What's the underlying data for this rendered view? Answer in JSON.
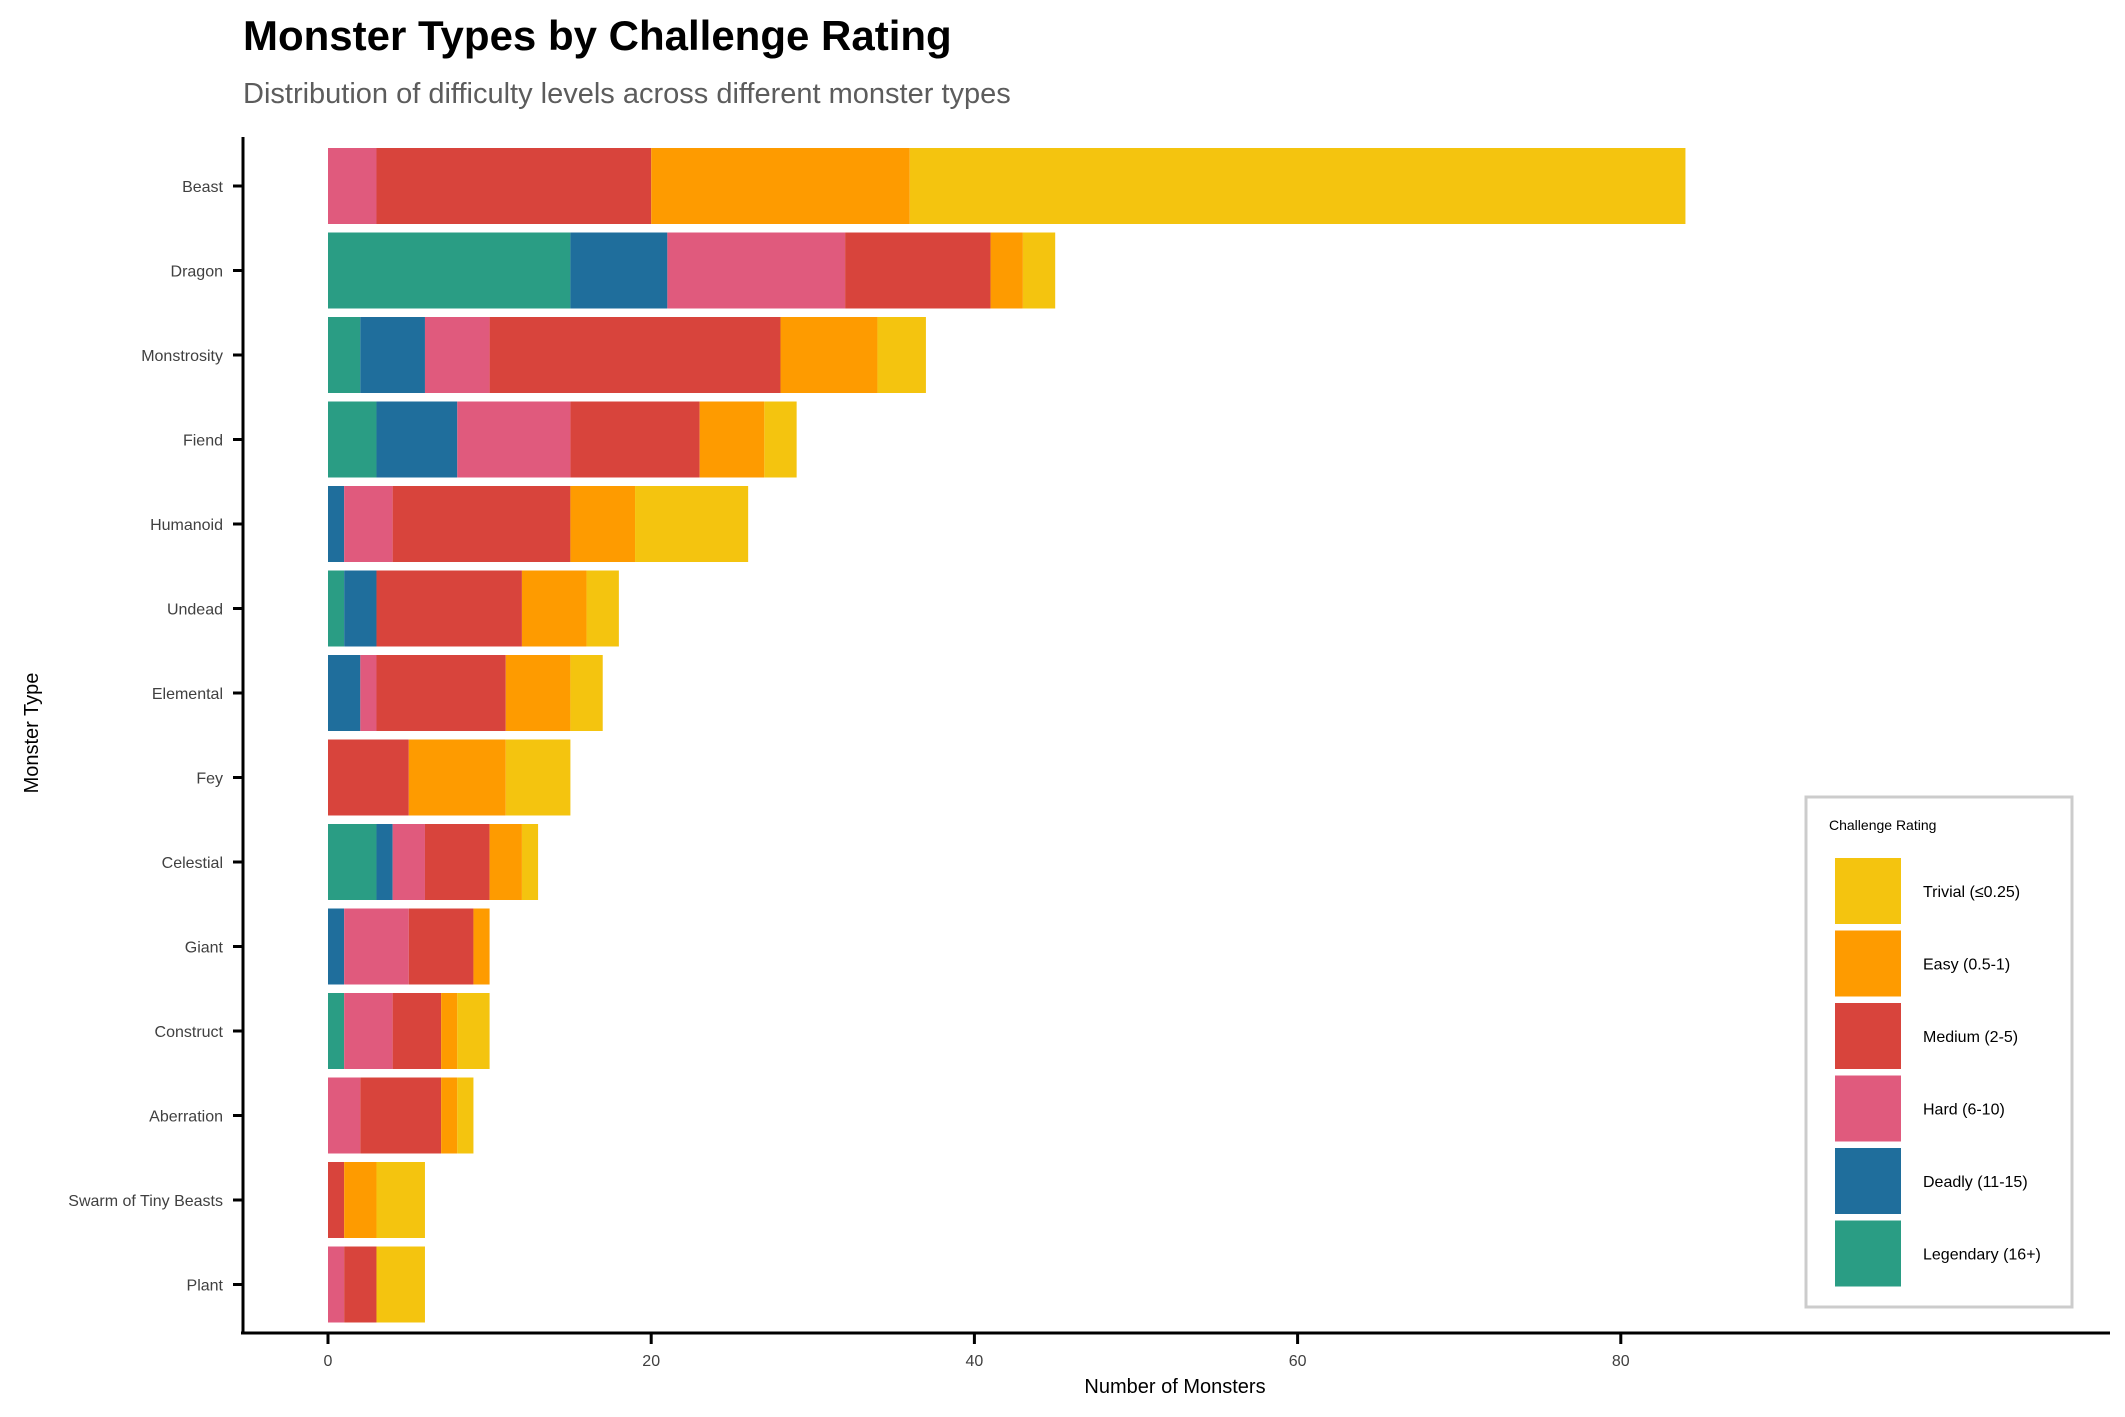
{
  "chart_data": {
    "type": "bar",
    "orientation": "horizontal",
    "stacked": true,
    "title": "Monster Types by Challenge Rating",
    "subtitle": "Distribution of difficulty levels across different monster types",
    "xlabel": "Number of Monsters",
    "ylabel": "Monster Type",
    "xlim": [
      0,
      88
    ],
    "xticks": [
      0,
      20,
      40,
      60,
      80
    ],
    "grid": false,
    "legend": {
      "title": "Challenge Rating",
      "position": "bottom-right"
    },
    "categories": [
      "Beast",
      "Dragon",
      "Monstrosity",
      "Fiend",
      "Humanoid",
      "Undead",
      "Elemental",
      "Fey",
      "Celestial",
      "Giant",
      "Construct",
      "Aberration",
      "Swarm of Tiny Beasts",
      "Plant"
    ],
    "series": [
      {
        "name": "Trivial (≤0.25)",
        "color": "#F4C40F",
        "values": [
          48,
          2,
          3,
          2,
          7,
          2,
          2,
          4,
          1,
          0,
          2,
          1,
          3,
          3
        ]
      },
      {
        "name": "Easy (0.5-1)",
        "color": "#FE9B00",
        "values": [
          16,
          2,
          6,
          4,
          4,
          4,
          4,
          6,
          2,
          1,
          1,
          1,
          2,
          0
        ]
      },
      {
        "name": "Medium (2-5)",
        "color": "#D8443C",
        "values": [
          17,
          9,
          18,
          8,
          11,
          9,
          8,
          5,
          4,
          4,
          3,
          5,
          1,
          2
        ]
      },
      {
        "name": "Hard (6-10)",
        "color": "#E05A7D",
        "values": [
          3,
          11,
          4,
          7,
          3,
          0,
          1,
          0,
          2,
          4,
          3,
          2,
          0,
          1
        ]
      },
      {
        "name": "Deadly (11-15)",
        "color": "#1F6E9C",
        "values": [
          0,
          6,
          4,
          5,
          1,
          2,
          2,
          0,
          1,
          1,
          0,
          0,
          0,
          0
        ]
      },
      {
        "name": "Legendary (16+)",
        "color": "#2A9D84",
        "values": [
          0,
          15,
          2,
          3,
          0,
          1,
          0,
          0,
          3,
          0,
          1,
          0,
          0,
          0
        ]
      }
    ],
    "stack_order": [
      "Legendary (16+)",
      "Deadly (11-15)",
      "Hard (6-10)",
      "Medium (2-5)",
      "Easy (0.5-1)",
      "Trivial (≤0.25)"
    ]
  }
}
